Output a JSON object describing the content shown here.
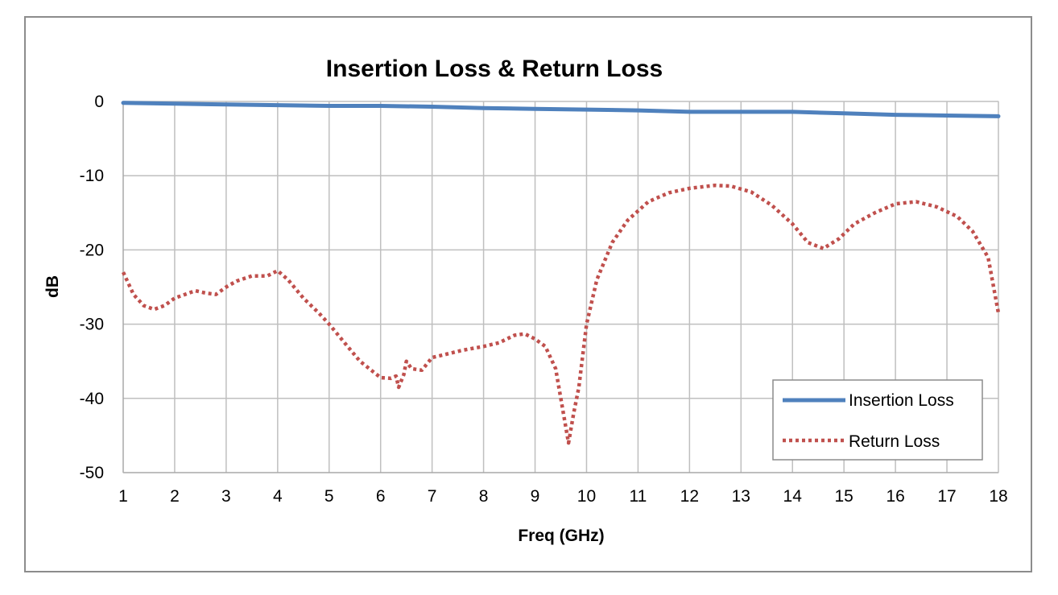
{
  "chart_data": {
    "type": "line",
    "title": "Insertion Loss & Return Loss",
    "xlabel": "Freq (GHz)",
    "ylabel": "dB",
    "xlim": [
      1,
      18
    ],
    "ylim": [
      -50,
      0
    ],
    "x_ticks": [
      1,
      2,
      3,
      4,
      5,
      6,
      7,
      8,
      9,
      10,
      11,
      12,
      13,
      14,
      15,
      16,
      17,
      18
    ],
    "y_ticks": [
      0,
      -10,
      -20,
      -30,
      -40,
      -50
    ],
    "grid": true,
    "legend_position": "bottom-right",
    "series": [
      {
        "name": "Insertion Loss",
        "style": "solid",
        "color": "#4f81bd",
        "x": [
          1,
          2,
          3,
          4,
          5,
          6,
          7,
          8,
          9,
          10,
          11,
          12,
          13,
          14,
          15,
          16,
          17,
          18
        ],
        "y": [
          -0.2,
          -0.3,
          -0.4,
          -0.5,
          -0.6,
          -0.6,
          -0.7,
          -0.9,
          -1.0,
          -1.1,
          -1.2,
          -1.4,
          -1.4,
          -1.4,
          -1.6,
          -1.8,
          -1.9,
          -2.0
        ]
      },
      {
        "name": "Return Loss",
        "style": "dotted",
        "color": "#c0504d",
        "x": [
          1,
          1.2,
          1.4,
          1.6,
          1.8,
          2.0,
          2.2,
          2.4,
          2.6,
          2.8,
          3.0,
          3.2,
          3.5,
          3.8,
          4.0,
          4.2,
          4.5,
          4.8,
          5.0,
          5.3,
          5.6,
          6.0,
          6.2,
          6.3,
          6.35,
          6.45,
          6.5,
          6.6,
          6.8,
          7.0,
          7.3,
          7.6,
          8.0,
          8.3,
          8.6,
          8.8,
          9.0,
          9.2,
          9.4,
          9.55,
          9.65,
          9.75,
          9.85,
          10.0,
          10.2,
          10.5,
          10.8,
          11.2,
          11.6,
          12.0,
          12.5,
          12.8,
          13.2,
          13.6,
          14.0,
          14.3,
          14.6,
          14.9,
          15.2,
          15.6,
          16.0,
          16.4,
          16.8,
          17.2,
          17.5,
          17.8,
          18.0
        ],
        "y": [
          -23,
          -26,
          -27.5,
          -28,
          -27.5,
          -26.5,
          -26,
          -25.5,
          -25.8,
          -26,
          -25,
          -24.2,
          -23.5,
          -23.5,
          -22.8,
          -24,
          -26.5,
          -28.5,
          -30,
          -32.5,
          -35,
          -37.2,
          -37.3,
          -37,
          -38.5,
          -36.8,
          -35,
          -36,
          -36.2,
          -34.5,
          -34,
          -33.5,
          -33,
          -32.5,
          -31.5,
          -31.3,
          -32,
          -33,
          -36,
          -42,
          -46,
          -42,
          -38.5,
          -30,
          -24,
          -19,
          -16,
          -13.5,
          -12.3,
          -11.7,
          -11.3,
          -11.4,
          -12.2,
          -14,
          -16.5,
          -19,
          -19.8,
          -18.5,
          -16.5,
          -15,
          -13.8,
          -13.5,
          -14.2,
          -15.5,
          -17.5,
          -21,
          -28.5
        ]
      }
    ]
  }
}
